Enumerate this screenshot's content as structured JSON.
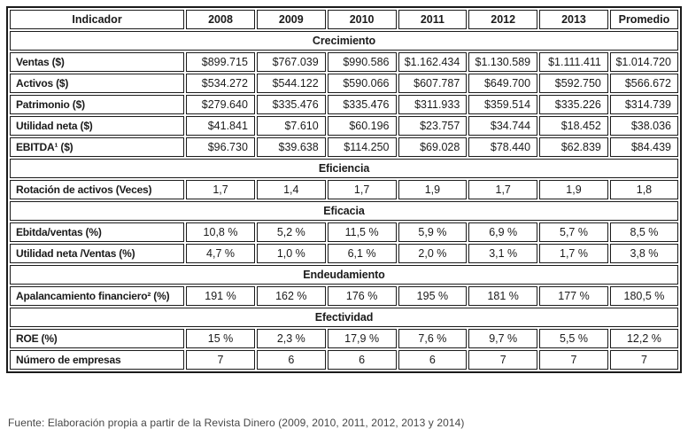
{
  "page": {
    "footer": "Fuente: Elaboración propia a partir de la Revista Dinero (2009, 2010, 2011, 2012, 2013 y 2014)"
  },
  "table": {
    "columns": [
      "Indicador",
      "2008",
      "2009",
      "2010",
      "2011",
      "2012",
      "2013",
      "Promedio"
    ],
    "sections": [
      {
        "title": "Crecimiento",
        "rows": [
          {
            "label": "Ventas ($)",
            "values": [
              "$899.715",
              "$767.039",
              "$990.586",
              "$1.162.434",
              "$1.130.589",
              "$1.111.411",
              "$1.014.720"
            ]
          },
          {
            "label": "Activos ($)",
            "values": [
              "$534.272",
              "$544.122",
              "$590.066",
              "$607.787",
              "$649.700",
              "$592.750",
              "$566.672"
            ]
          },
          {
            "label": "Patrimonio ($)",
            "values": [
              "$279.640",
              "$335.476",
              "$335.476",
              "$311.933",
              "$359.514",
              "$335.226",
              "$314.739"
            ]
          },
          {
            "label": "Utilidad neta ($)",
            "values": [
              "$41.841",
              "$7.610",
              "$60.196",
              "$23.757",
              "$34.744",
              "$18.452",
              "$38.036"
            ]
          },
          {
            "label": "EBITDA¹ ($)",
            "values": [
              "$96.730",
              "$39.638",
              "$114.250",
              "$69.028",
              "$78.440",
              "$62.839",
              "$84.439"
            ]
          }
        ]
      },
      {
        "title": "Eficiencia",
        "rows": [
          {
            "label": "Rotación de activos (Veces)",
            "values": [
              "1,7",
              "1,4",
              "1,7",
              "1,9",
              "1,7",
              "1,9",
              "1,8"
            ]
          }
        ]
      },
      {
        "title": "Eficacia",
        "rows": [
          {
            "label": "Ebitda/ventas (%)",
            "values": [
              "10,8 %",
              "5,2 %",
              "11,5 %",
              "5,9 %",
              "6,9 %",
              "5,7 %",
              "8,5 %"
            ]
          },
          {
            "label": "Utilidad neta /Ventas (%)",
            "values": [
              "4,7 %",
              "1,0 %",
              "6,1 %",
              "2,0 %",
              "3,1 %",
              "1,7 %",
              "3,8 %"
            ]
          }
        ]
      },
      {
        "title": "Endeudamiento",
        "rows": [
          {
            "label": "Apalancamiento financiero² (%)",
            "values": [
              "191 %",
              "162 %",
              "176 %",
              "195 %",
              "181 %",
              "177 %",
              "180,5 %"
            ]
          }
        ]
      },
      {
        "title": "Efectividad",
        "rows": [
          {
            "label": "ROE (%)",
            "values": [
              "15 %",
              "2,3 %",
              "17,9 %",
              "7,6 %",
              "9,7 %",
              "5,5 %",
              "12,2 %"
            ]
          },
          {
            "label": "Número de empresas",
            "values": [
              "7",
              "6",
              "6",
              "6",
              "7",
              "7",
              "7"
            ]
          }
        ]
      }
    ]
  }
}
